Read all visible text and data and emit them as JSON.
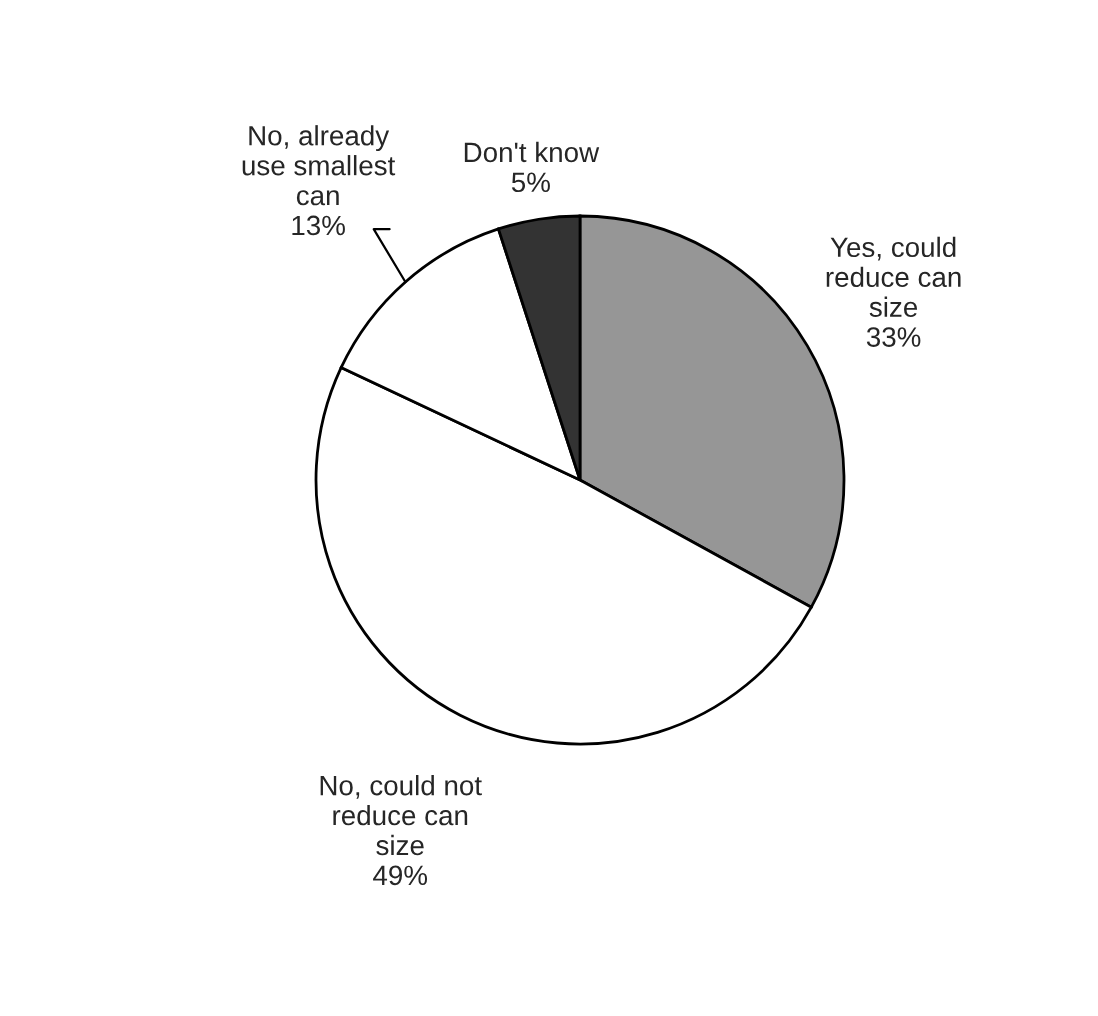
{
  "chart_data": {
    "type": "pie",
    "categories": [
      "Yes, could\nreduce can\nsize",
      "No, could not\nreduce can\nsize",
      "No, already\nuse smallest\ncan",
      "Don't know"
    ],
    "values": [
      33,
      49,
      13,
      5
    ],
    "colors": [
      "#969696",
      "#ffffff",
      "#ffffff",
      "#333333"
    ],
    "value_labels": [
      "33%",
      "49%",
      "13%",
      "5%"
    ],
    "legend": false
  }
}
